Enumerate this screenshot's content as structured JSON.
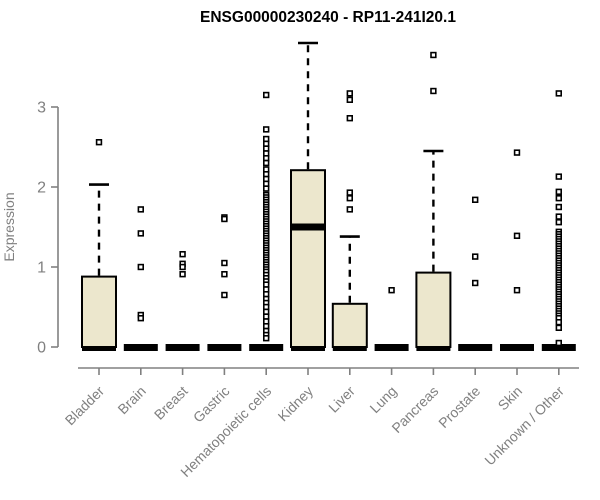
{
  "chart_data": {
    "type": "boxplot",
    "title": "ENSG00000230240 - RP11-241I20.1",
    "ylabel": "Expression",
    "xlabel": "",
    "yticks": [
      0,
      1,
      2,
      3
    ],
    "ylim": [
      0,
      3.85
    ],
    "grid": false,
    "legend": false,
    "categories": [
      "Bladder",
      "Brain",
      "Breast",
      "Gastric",
      "Hematopoietic cells",
      "Kidney",
      "Liver",
      "Lung",
      "Pancreas",
      "Prostate",
      "Skin",
      "Unknown / Other"
    ],
    "boxes": [
      {
        "category": "Bladder",
        "q1": 0,
        "median": 0,
        "q3": 0.88,
        "whisker_low": 0,
        "whisker_high": 2.03,
        "outliers": [
          2.56
        ]
      },
      {
        "category": "Brain",
        "q1": 0,
        "median": 0,
        "q3": 0,
        "whisker_low": 0,
        "whisker_high": 0,
        "outliers": [
          1.72,
          1.42,
          1.0,
          0.4,
          0.36
        ]
      },
      {
        "category": "Breast",
        "q1": 0,
        "median": 0,
        "q3": 0,
        "whisker_low": 0,
        "whisker_high": 0,
        "outliers": [
          1.16,
          1.04,
          1.0,
          0.91
        ]
      },
      {
        "category": "Gastric",
        "q1": 0,
        "median": 0,
        "q3": 0,
        "whisker_low": 0,
        "whisker_high": 0,
        "outliers": [
          1.62,
          1.6,
          1.05,
          0.91,
          0.65
        ]
      },
      {
        "category": "Hematopoietic cells",
        "q1": 0,
        "median": 0,
        "q3": 0,
        "whisker_low": 0,
        "whisker_high": 0,
        "outliers": [
          3.15,
          2.72,
          2.6,
          2.54,
          2.48,
          2.42,
          2.36,
          2.3,
          2.22,
          2.16,
          2.1,
          2.04,
          1.98,
          1.9,
          1.87,
          1.84,
          1.81,
          1.78,
          1.75,
          1.72,
          1.69,
          1.66,
          1.63,
          1.6,
          1.57,
          1.54,
          1.51,
          1.48,
          1.45,
          1.42,
          1.39,
          1.36,
          1.33,
          1.3,
          1.27,
          1.24,
          1.21,
          1.18,
          1.15,
          1.12,
          1.09,
          1.06,
          1.03,
          1.0,
          0.97,
          0.94,
          0.9,
          0.86,
          0.82,
          0.78,
          0.72,
          0.66,
          0.6,
          0.55,
          0.5,
          0.44,
          0.38,
          0.32,
          0.26,
          0.2,
          0.15,
          0.11
        ]
      },
      {
        "category": "Kidney",
        "q1": 0,
        "median": 1.5,
        "q3": 2.21,
        "whisker_low": 0,
        "whisker_high": 3.8,
        "outliers": []
      },
      {
        "category": "Liver",
        "q1": 0,
        "median": 0,
        "q3": 0.54,
        "whisker_low": 0,
        "whisker_high": 1.38,
        "outliers": [
          3.17,
          3.09,
          2.86,
          1.93,
          1.86,
          1.72
        ]
      },
      {
        "category": "Lung",
        "q1": 0,
        "median": 0,
        "q3": 0,
        "whisker_low": 0,
        "whisker_high": 0,
        "outliers": [
          0.71
        ]
      },
      {
        "category": "Pancreas",
        "q1": 0,
        "median": 0,
        "q3": 0.93,
        "whisker_low": 0,
        "whisker_high": 2.45,
        "outliers": [
          3.65,
          3.2
        ]
      },
      {
        "category": "Prostate",
        "q1": 0,
        "median": 0,
        "q3": 0,
        "whisker_low": 0,
        "whisker_high": 0,
        "outliers": [
          1.84,
          1.13,
          0.8
        ]
      },
      {
        "category": "Skin",
        "q1": 0,
        "median": 0,
        "q3": 0,
        "whisker_low": 0,
        "whisker_high": 0,
        "outliers": [
          2.43,
          1.39,
          0.71
        ]
      },
      {
        "category": "Unknown / Other",
        "q1": 0,
        "median": 0,
        "q3": 0,
        "whisker_low": 0,
        "whisker_high": 0,
        "outliers": [
          3.17,
          2.13,
          1.94,
          1.86,
          1.75,
          1.63,
          1.56,
          1.44,
          1.41,
          1.38,
          1.35,
          1.32,
          1.29,
          1.26,
          1.23,
          1.2,
          1.17,
          1.14,
          1.11,
          1.08,
          1.05,
          1.02,
          0.99,
          0.96,
          0.93,
          0.9,
          0.87,
          0.84,
          0.81,
          0.78,
          0.75,
          0.72,
          0.69,
          0.66,
          0.63,
          0.6,
          0.57,
          0.54,
          0.51,
          0.48,
          0.45,
          0.42,
          0.39,
          0.36,
          0.31,
          0.24,
          0.05
        ]
      }
    ],
    "colors": {
      "box_fill": "#ece7cd",
      "box_stroke": "#000000",
      "median": "#000000",
      "whisker": "#000000",
      "outlier_fill": "#ffffff",
      "outlier_stroke": "#000000",
      "axis": "#808080",
      "tick_text": "#808080",
      "title_text": "#000000",
      "background": "#ffffff"
    }
  }
}
